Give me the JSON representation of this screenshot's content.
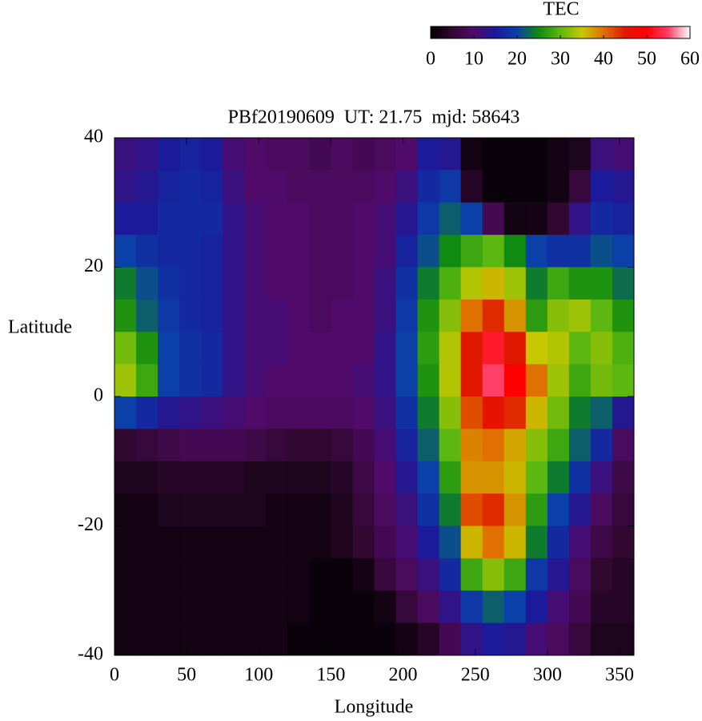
{
  "chart_data": {
    "type": "heatmap",
    "title": "PBf20190609  UT: 21.75  mjd: 58643",
    "xlabel": "Longitude",
    "ylabel": "Latitude",
    "colorbar_label": "TEC",
    "x": [
      7.5,
      22.5,
      37.5,
      52.5,
      67.5,
      82.5,
      97.5,
      112.5,
      127.5,
      142.5,
      157.5,
      172.5,
      187.5,
      202.5,
      217.5,
      232.5,
      247.5,
      262.5,
      277.5,
      292.5,
      307.5,
      322.5,
      337.5,
      352.5
    ],
    "y": [
      37.5,
      32.5,
      27.5,
      22.5,
      17.5,
      12.5,
      7.5,
      2.5,
      -2.5,
      -7.5,
      -12.5,
      -17.5,
      -22.5,
      -27.5,
      -32.5,
      -37.5
    ],
    "z": [
      [
        12,
        13,
        15,
        16,
        15,
        11,
        10,
        9,
        9,
        8,
        9,
        8,
        9,
        10,
        15,
        14,
        2,
        1,
        1,
        1,
        2,
        3,
        12,
        11
      ],
      [
        13,
        14,
        16,
        17,
        16,
        12,
        10,
        10,
        9,
        9,
        9,
        9,
        10,
        12,
        17,
        19,
        4,
        1,
        1,
        1,
        2,
        6,
        15,
        14
      ],
      [
        15,
        15,
        17,
        17,
        17,
        13,
        11,
        10,
        10,
        9,
        9,
        10,
        11,
        14,
        19,
        22,
        20,
        8,
        2,
        2,
        5,
        13,
        17,
        16
      ],
      [
        20,
        18,
        17,
        17,
        16,
        13,
        11,
        10,
        10,
        9,
        9,
        10,
        11,
        16,
        21,
        25,
        28,
        30,
        25,
        20,
        18,
        18,
        21,
        20
      ],
      [
        24,
        21,
        18,
        17,
        16,
        13,
        11,
        10,
        10,
        9,
        9,
        10,
        12,
        18,
        24,
        29,
        34,
        36,
        33,
        24,
        28,
        26,
        26,
        23
      ],
      [
        26,
        22,
        19,
        17,
        16,
        13,
        11,
        11,
        10,
        9,
        10,
        10,
        12,
        19,
        26,
        32,
        40,
        44,
        38,
        27,
        32,
        33,
        30,
        26
      ],
      [
        31,
        26,
        20,
        18,
        17,
        13,
        11,
        11,
        10,
        10,
        10,
        10,
        13,
        20,
        27,
        34,
        45,
        52,
        45,
        35,
        34,
        30,
        32,
        29
      ],
      [
        33,
        28,
        20,
        18,
        17,
        13,
        11,
        10,
        10,
        10,
        10,
        11,
        13,
        20,
        26,
        34,
        45,
        55,
        50,
        40,
        33,
        28,
        31,
        30
      ],
      [
        20,
        17,
        14,
        13,
        12,
        11,
        10,
        9,
        9,
        9,
        9,
        10,
        12,
        18,
        24,
        32,
        42,
        46,
        44,
        36,
        31,
        24,
        22,
        14
      ],
      [
        5,
        6,
        7,
        8,
        8,
        8,
        7,
        6,
        5,
        5,
        6,
        8,
        11,
        16,
        22,
        30,
        39,
        40,
        37,
        32,
        28,
        22,
        17,
        9
      ],
      [
        3,
        3,
        4,
        4,
        4,
        4,
        3,
        3,
        3,
        3,
        4,
        7,
        10,
        14,
        20,
        27,
        38,
        38,
        36,
        30,
        24,
        18,
        12,
        7
      ],
      [
        2,
        2,
        3,
        3,
        3,
        3,
        3,
        2,
        2,
        2,
        3,
        6,
        9,
        12,
        18,
        24,
        42,
        44,
        38,
        27,
        20,
        14,
        9,
        6
      ],
      [
        2,
        2,
        2,
        2,
        2,
        2,
        2,
        2,
        2,
        2,
        3,
        5,
        8,
        11,
        15,
        21,
        36,
        40,
        36,
        24,
        17,
        11,
        7,
        5
      ],
      [
        2,
        2,
        2,
        2,
        2,
        2,
        2,
        2,
        2,
        1,
        1,
        2,
        6,
        9,
        12,
        17,
        28,
        32,
        28,
        19,
        14,
        9,
        5,
        4
      ],
      [
        2,
        2,
        2,
        2,
        2,
        2,
        2,
        2,
        2,
        1,
        1,
        1,
        2,
        6,
        9,
        13,
        19,
        22,
        20,
        15,
        11,
        8,
        4,
        4
      ],
      [
        2,
        2,
        2,
        2,
        2,
        2,
        2,
        2,
        1,
        1,
        1,
        1,
        1,
        2,
        4,
        8,
        13,
        15,
        14,
        11,
        9,
        6,
        3,
        3
      ]
    ],
    "xlim": [
      0,
      360
    ],
    "xticks": [
      0,
      50,
      100,
      150,
      200,
      250,
      300,
      350
    ],
    "ylim": [
      -40,
      40
    ],
    "yticks": [
      -40,
      -20,
      0,
      20,
      40
    ],
    "clim": [
      0,
      60
    ],
    "cticks": [
      0,
      10,
      20,
      30,
      40,
      50,
      60
    ],
    "colormap": [
      "#000000",
      "#300830",
      "#500a6a",
      "#1a1a9a",
      "#0a40a8",
      "#108a10",
      "#5cb810",
      "#c8c800",
      "#e07000",
      "#e01800",
      "#ff0000",
      "#ff4068",
      "#ffffff"
    ]
  }
}
